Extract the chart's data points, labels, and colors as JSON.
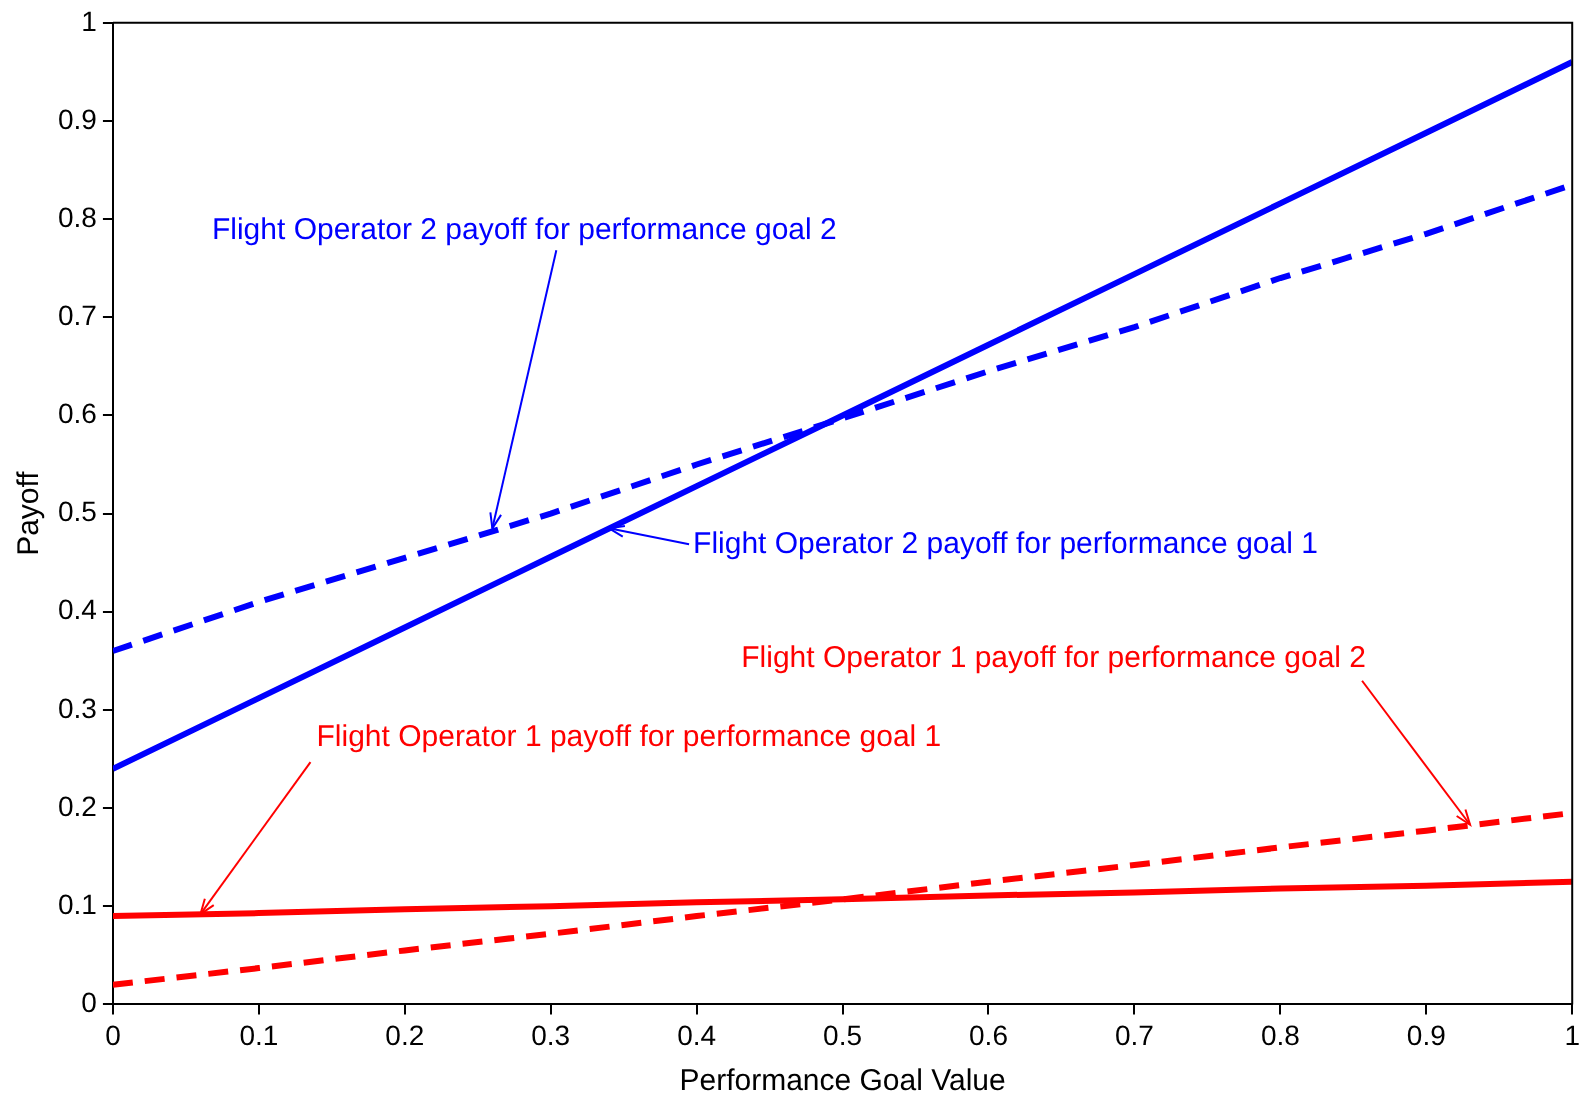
{
  "chart_data": {
    "type": "line",
    "xlabel": "Performance Goal Value",
    "ylabel": "Payoff",
    "x": [
      0,
      0.1,
      0.2,
      0.3,
      0.4,
      0.5,
      0.6,
      0.7,
      0.8,
      0.9,
      1
    ],
    "series": [
      {
        "color": "#0000ff",
        "line_style": "solid",
        "values": [
          0.24,
          0.312,
          0.384,
          0.456,
          0.528,
          0.6,
          0.672,
          0.744,
          0.816,
          0.888,
          0.96
        ]
      },
      {
        "color": "#0000ff",
        "line_style": "dashed",
        "values": [
          0.36,
          0.41,
          0.455,
          0.5,
          0.55,
          0.597,
          0.645,
          0.69,
          0.74,
          0.785,
          0.835
        ]
      },
      {
        "color": "#ff0000",
        "line_style": "solid",
        "values": [
          0.09,
          0.093,
          0.097,
          0.1,
          0.104,
          0.107,
          0.111,
          0.114,
          0.118,
          0.121,
          0.125
        ]
      },
      {
        "color": "#ff0000",
        "line_style": "dashed",
        "values": [
          0.02,
          0.037,
          0.055,
          0.072,
          0.09,
          0.107,
          0.125,
          0.142,
          0.16,
          0.177,
          0.195
        ]
      }
    ],
    "xlim": [
      0,
      1
    ],
    "xticks": [
      0,
      0.1,
      0.2,
      0.3,
      0.4,
      0.5,
      0.6,
      0.7,
      0.8,
      0.9,
      1
    ],
    "ylim": [
      0,
      1
    ],
    "yticks": [
      0,
      0.1,
      0.2,
      0.3,
      0.4,
      0.5,
      0.6,
      0.7,
      0.8,
      0.9,
      1
    ],
    "grid": false,
    "legend": false,
    "marker": "none",
    "annotations": [
      {
        "text": "Flight Operator 2 payoff for performance goal 2",
        "x": 0.26,
        "y": 0.485
      },
      {
        "text": "Flight Operator 2 payoff for performance goal 1",
        "x": 0.34,
        "y": 0.485
      },
      {
        "text": "Flight Operator 1 payoff for performance goal 2",
        "x": 0.93,
        "y": 0.183
      },
      {
        "text": "Flight Operator 1 payoff for performance goal 1",
        "x": 0.06,
        "y": 0.092
      }
    ]
  }
}
